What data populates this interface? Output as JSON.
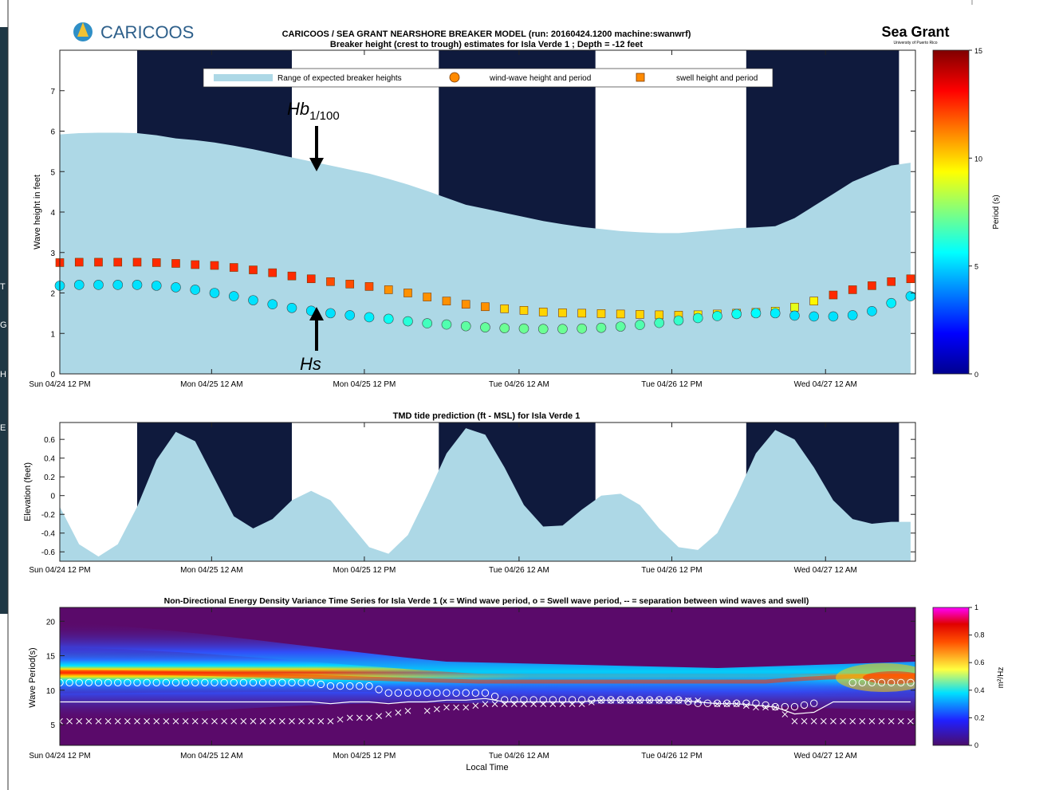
{
  "header": {
    "logo_text": "CARICOOS",
    "title_line1": "CARICOOS / SEA GRANT NEARSHORE BREAKER MODEL (run: 20160424.1200 machine:swanwrf)",
    "title_line2": "Breaker height (crest to trough) estimates for Isla Verde 1 ; Depth = -12 feet",
    "seagrant_text": "Sea Grant",
    "seagrant_sub": "University of Puerto Rico"
  },
  "side_letters": [
    "T",
    "G",
    "H",
    "E"
  ],
  "time_ticks": [
    "Sun 04/24 12 PM",
    "Mon 04/25 12 AM",
    "Mon 04/25 12 PM",
    "Tue 04/26 12 AM",
    "Tue 04/26 12 PM",
    "Wed 04/27 12 AM"
  ],
  "colors": {
    "night": "#0f1a3d",
    "range_fill": "#add8e6",
    "swell_edge": "#7a3a00"
  },
  "chart_data": [
    {
      "type": "area",
      "title": "",
      "ylabel": "Wave height in feet",
      "ylim": [
        0,
        8
      ],
      "yticks": [
        0,
        1,
        2,
        3,
        4,
        5,
        6,
        7
      ],
      "x_hours_from_start": "0 to 84, step 2 (points every 2 h from Sun 04/24 12 PM)",
      "legend": {
        "position": "top",
        "range_label": "Range of expected breaker heights",
        "wind_label": "wind-wave height and period",
        "swell_label": "swell height and period"
      },
      "annotations": {
        "upper_arrow": "Hb_{1/100}",
        "lower_arrow": "Hs"
      },
      "colorbar": {
        "label": "Period (s)",
        "range": [
          0,
          15
        ],
        "ticks": [
          0,
          5,
          10,
          15
        ]
      },
      "series": [
        {
          "name": "Range of expected breaker heights",
          "values": [
            5.92,
            5.95,
            5.96,
            5.96,
            5.95,
            5.9,
            5.82,
            5.78,
            5.72,
            5.64,
            5.55,
            5.45,
            5.35,
            5.25,
            5.15,
            5.05,
            4.95,
            4.82,
            4.68,
            4.52,
            4.35,
            4.18,
            4.08,
            3.98,
            3.88,
            3.78,
            3.7,
            3.63,
            3.58,
            3.53,
            3.5,
            3.48,
            3.48,
            3.52,
            3.56,
            3.6,
            3.62,
            3.65,
            3.85,
            4.15,
            4.45,
            4.75,
            4.95,
            5.15,
            5.22
          ]
        },
        {
          "name": "swell height and period",
          "values": [
            2.75,
            2.76,
            2.76,
            2.76,
            2.76,
            2.75,
            2.73,
            2.7,
            2.68,
            2.63,
            2.57,
            2.5,
            2.42,
            2.35,
            2.28,
            2.22,
            2.16,
            2.08,
            2.0,
            1.9,
            1.8,
            1.72,
            1.66,
            1.61,
            1.57,
            1.53,
            1.51,
            1.5,
            1.49,
            1.48,
            1.47,
            1.46,
            1.45,
            1.46,
            1.48,
            1.5,
            1.52,
            1.55,
            1.65,
            1.8,
            1.95,
            2.08,
            2.18,
            2.28,
            2.35
          ]
        },
        {
          "name": "wind-wave height and period",
          "values": [
            2.18,
            2.2,
            2.2,
            2.2,
            2.2,
            2.18,
            2.14,
            2.08,
            2.0,
            1.92,
            1.82,
            1.72,
            1.63,
            1.56,
            1.5,
            1.45,
            1.4,
            1.36,
            1.3,
            1.25,
            1.22,
            1.18,
            1.15,
            1.13,
            1.12,
            1.11,
            1.11,
            1.12,
            1.14,
            1.17,
            1.21,
            1.26,
            1.32,
            1.38,
            1.43,
            1.48,
            1.5,
            1.5,
            1.44,
            1.42,
            1.42,
            1.45,
            1.55,
            1.75,
            1.92
          ]
        }
      ],
      "periods_s": {
        "swell": [
          12.5,
          12.5,
          12.5,
          12.5,
          12.5,
          12.5,
          12.5,
          12.5,
          12.5,
          12.5,
          12.5,
          12.5,
          12.5,
          12.5,
          12.0,
          12.0,
          12.0,
          11.0,
          11.0,
          11.0,
          11.0,
          11.0,
          11.0,
          10.0,
          10.0,
          10.0,
          10.0,
          10.0,
          10.0,
          10.0,
          10.0,
          10.0,
          10.0,
          9.5,
          9.5,
          9.5,
          9.5,
          9.0,
          9.0,
          9.5,
          12.5,
          12.5,
          12.5,
          12.5,
          12.5
        ],
        "wind": [
          5.5,
          5.5,
          5.5,
          5.5,
          5.5,
          5.5,
          5.5,
          5.5,
          5.5,
          5.5,
          5.5,
          5.5,
          5.5,
          5.5,
          5.5,
          6.0,
          6.0,
          6.5,
          7.0,
          7.0,
          7.5,
          7.5,
          8.0,
          8.0,
          8.0,
          8.0,
          8.0,
          8.0,
          8.5,
          8.5,
          8.5,
          8.5,
          8.5,
          8.5,
          8.0,
          8.0,
          7.5,
          7.5,
          5.5,
          5.5,
          5.5,
          5.5,
          5.5,
          5.5,
          5.5
        ]
      }
    },
    {
      "type": "area",
      "title": "TMD tide prediction (ft - MSL) for Isla Verde 1",
      "ylabel": "Elevation (feet)",
      "ylim": [
        -0.7,
        0.78
      ],
      "yticks": [
        "0.6",
        "0.4",
        "0.2",
        "0",
        "-0.2",
        "-0.4",
        "-0.6"
      ],
      "series": [
        {
          "name": "",
          "values": [
            -0.12,
            -0.52,
            -0.65,
            -0.52,
            -0.12,
            0.38,
            0.68,
            0.58,
            0.18,
            -0.22,
            -0.35,
            -0.25,
            -0.05,
            0.05,
            -0.05,
            -0.3,
            -0.55,
            -0.62,
            -0.42,
            0.0,
            0.45,
            0.72,
            0.65,
            0.3,
            -0.1,
            -0.33,
            -0.32,
            -0.15,
            0.0,
            0.02,
            -0.1,
            -0.35,
            -0.55,
            -0.58,
            -0.4,
            0.0,
            0.45,
            0.7,
            0.6,
            0.3,
            -0.05,
            -0.25,
            -0.3,
            -0.28,
            -0.28
          ]
        }
      ]
    },
    {
      "type": "heatmap",
      "title": "Non-Directional Energy Density Variance Time Series for Isla Verde 1 (x = Wind wave period, o = Swell wave period, -- = separation between wind waves and swell)",
      "xlabel": "Local Time",
      "ylabel": "Wave Period(s)",
      "ylim": [
        2,
        22
      ],
      "yticks": [
        5,
        10,
        15,
        20
      ],
      "colorbar": {
        "label": "m²/Hz",
        "range": [
          0,
          1
        ],
        "ticks": [
          "0",
          "0.2",
          "0.4",
          "0.6",
          "0.8",
          "1"
        ]
      }
    }
  ]
}
